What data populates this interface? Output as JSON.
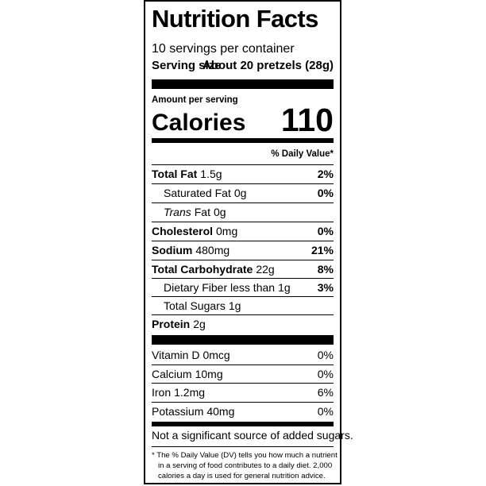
{
  "header": {
    "title": "Nutrition Facts",
    "servings": "10 servings per container",
    "serving_size_label": "Serving size",
    "serving_size_value": "About 20 pretzels (28g)"
  },
  "calories": {
    "amount_per_serving": "Amount per serving",
    "label": "Calories",
    "value": 110
  },
  "daily_value_header": "% Daily Value*",
  "nutrients": [
    {
      "name": "Total Fat",
      "amount": "1.5g",
      "dv": "2%"
    },
    {
      "name": "Saturated Fat",
      "amount": "0g",
      "dv": "0%"
    },
    {
      "prefix": "Trans",
      "name": "Fat",
      "amount": "0g"
    },
    {
      "name": "Cholesterol",
      "amount": "0mg",
      "dv": "0%"
    },
    {
      "name": "Sodium",
      "amount": "480mg",
      "dv": "21%"
    },
    {
      "name": "Total Carbohydrate",
      "amount": "22g",
      "dv": "8%"
    },
    {
      "name": "Dietary Fiber less than",
      "amount": "1g",
      "dv": "3%"
    },
    {
      "name": "Total Sugars",
      "amount": "1g"
    },
    {
      "name": "Protein",
      "amount": "2g"
    }
  ],
  "vitamins": [
    {
      "name": "Vitamin D",
      "amount": "0mcg",
      "dv": "0%"
    },
    {
      "name": "Calcium",
      "amount": "10mg",
      "dv": "0%"
    },
    {
      "name": "Iron",
      "amount": "1.2mg",
      "dv": "6%"
    },
    {
      "name": "Potassium",
      "amount": "40mg",
      "dv": "0%"
    }
  ],
  "note": "Not a significant source of added sugars.",
  "footnote": [
    "* The % Daily Value (DV) tells you how much a nutrient",
    "in a serving of food contributes to a daily diet. 2,000",
    "calories a day is used for general nutrition advice."
  ]
}
